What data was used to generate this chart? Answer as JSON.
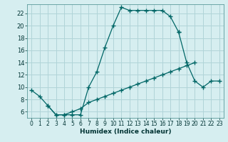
{
  "title": "",
  "xlabel": "Humidex (Indice chaleur)",
  "bg_color": "#d6eef0",
  "grid_color": "#b0d4d8",
  "line_color": "#006666",
  "xlim": [
    -0.5,
    23.5
  ],
  "ylim": [
    5.0,
    23.5
  ],
  "xticks": [
    0,
    1,
    2,
    3,
    4,
    5,
    6,
    7,
    8,
    9,
    10,
    11,
    12,
    13,
    14,
    15,
    16,
    17,
    18,
    19,
    20,
    21,
    22,
    23
  ],
  "yticks": [
    6,
    8,
    10,
    12,
    14,
    16,
    18,
    20,
    22
  ],
  "line1_x": [
    0,
    1,
    2,
    3,
    4,
    5,
    6,
    7,
    8,
    9,
    10,
    11,
    12,
    13,
    14,
    15,
    16,
    17,
    18
  ],
  "line1_y": [
    9.5,
    8.5,
    7.0,
    5.5,
    5.5,
    5.5,
    5.5,
    10.0,
    12.5,
    16.5,
    20.0,
    23.0,
    22.5,
    22.5,
    22.5,
    22.5,
    22.5,
    21.5,
    19.0
  ],
  "line2_x": [
    18,
    19,
    20,
    21,
    22,
    23
  ],
  "line2_y": [
    19.0,
    14.0,
    11.0,
    10.0,
    11.0,
    11.0
  ],
  "line3_x": [
    2,
    3,
    4,
    5,
    6,
    7,
    8,
    9,
    10,
    11,
    12,
    13,
    14,
    15,
    16,
    17,
    18,
    19,
    20
  ],
  "line3_y": [
    7.0,
    5.5,
    5.5,
    6.0,
    6.5,
    7.5,
    8.0,
    8.5,
    9.0,
    9.5,
    10.0,
    10.5,
    11.0,
    11.5,
    12.0,
    12.5,
    13.0,
    13.5,
    14.0
  ]
}
